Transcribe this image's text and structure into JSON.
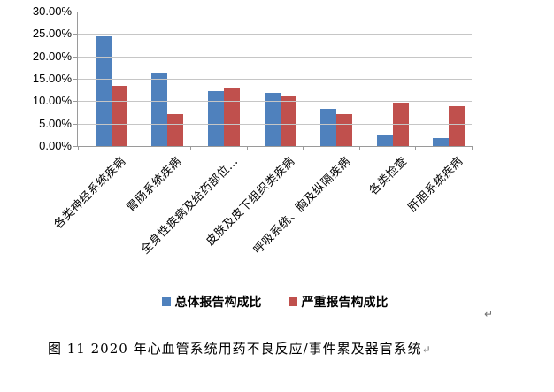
{
  "chart_data": {
    "type": "bar",
    "title": "",
    "categories": [
      "各类神经系统疾病",
      "胃肠系统疾病",
      "全身性疾病及给药部位…",
      "皮肤及皮下组织类疾病",
      "呼吸系统、胸及纵隔疾病",
      "各类检查",
      "肝胆系统疾病"
    ],
    "series": [
      {
        "name": "总体报告构成比",
        "color": "#4F81BD",
        "values": [
          24.4,
          16.3,
          12.2,
          11.9,
          8.3,
          2.3,
          1.7
        ]
      },
      {
        "name": "严重报告构成比",
        "color": "#C0504D",
        "values": [
          13.5,
          7.1,
          13.0,
          11.2,
          7.1,
          9.6,
          8.9
        ]
      }
    ],
    "xlabel": "",
    "ylabel": "",
    "ylim": [
      0,
      30
    ],
    "ytick_step": 5,
    "ytick_labels": [
      "30.00%",
      "25.00%",
      "20.00%",
      "15.00%",
      "10.00%",
      "5.00%",
      "0.00%"
    ],
    "grid": true,
    "legend_position": "bottom"
  },
  "figure": {
    "caption": "图 11  2020 年心血管系统用药不良反应/事件累及器官系统",
    "paragraph_mark": "↵"
  },
  "colors": {
    "series_overall": "#4F81BD",
    "series_serious": "#C0504D",
    "gridline": "#C6C6C6",
    "axis": "#9A9A9A",
    "paragraph_mark": "#6E6E6E"
  }
}
